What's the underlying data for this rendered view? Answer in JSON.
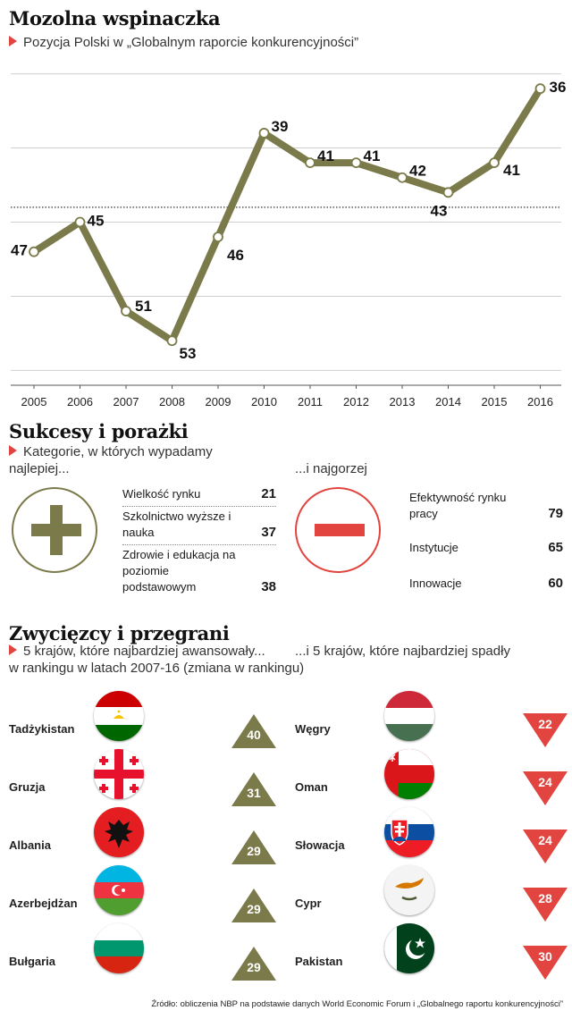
{
  "title": "Mozolna wspinaczka",
  "subtitle": "Pozycja Polski w „Globalnym raporcie konkurencyjności”",
  "chart_data": {
    "type": "line",
    "x": [
      "2005",
      "2006",
      "2007",
      "2008",
      "2009",
      "2010",
      "2011",
      "2012",
      "2013",
      "2014",
      "2015",
      "2016"
    ],
    "series": [
      {
        "values": [
          47,
          45,
          51,
          53,
          46,
          39,
          41,
          41,
          42,
          43,
          41,
          36
        ]
      }
    ],
    "ylim": [
      56,
      34
    ],
    "y_reversed": true,
    "reference_line": 44,
    "grid": true,
    "line_color": "#7b7a4a"
  },
  "section2": {
    "title": "Sukcesy i porażki",
    "subtitle_left_1": "Kategorie, w których wypadamy",
    "subtitle_left_2": "najlepiej...",
    "subtitle_right": "...i najgorzej",
    "best": [
      {
        "label": "Wielkość rynku",
        "value": "21"
      },
      {
        "label": "Szkolnictwo wyższe i nauka",
        "value": "37"
      },
      {
        "label": "Zdrowie i edukacja na poziomie podstawowym",
        "value": "38"
      }
    ],
    "worst": [
      {
        "label": "Efektywność rynku pracy",
        "value": "79"
      },
      {
        "label": "Instytucje",
        "value": "65"
      },
      {
        "label": "Innowacje",
        "value": "60"
      }
    ]
  },
  "section3": {
    "title": "Zwycięzcy i przegrani",
    "subtitle_left": "5 krajów, które najbardziej awansowały...",
    "subtitle_right": "...i 5 krajów, które najbardziej spadły",
    "subtitle_line2": "w rankingu w latach 2007-16 (zmiana w rankingu)",
    "winners": [
      {
        "country": "Tadżykistan",
        "change": "40",
        "flag": "tajikistan-flag"
      },
      {
        "country": "Gruzja",
        "change": "31",
        "flag": "georgia-flag"
      },
      {
        "country": "Albania",
        "change": "29",
        "flag": "albania-flag"
      },
      {
        "country": "Azerbejdżan",
        "change": "29",
        "flag": "azerbaijan-flag"
      },
      {
        "country": "Bułgaria",
        "change": "29",
        "flag": "bulgaria-flag"
      }
    ],
    "losers": [
      {
        "country": "Węgry",
        "change": "22",
        "flag": "hungary-flag"
      },
      {
        "country": "Oman",
        "change": "24",
        "flag": "oman-flag"
      },
      {
        "country": "Słowacja",
        "change": "24",
        "flag": "slovakia-flag"
      },
      {
        "country": "Cypr",
        "change": "28",
        "flag": "cyprus-flag"
      },
      {
        "country": "Pakistan",
        "change": "30",
        "flag": "pakistan-flag"
      }
    ]
  },
  "source": "Źródło: obliczenia NBP na podstawie danych World Economic Forum i „Globalnego raportu konkurencyjności”",
  "colors": {
    "olive": "#7b7a4a",
    "red": "#e2453f"
  }
}
